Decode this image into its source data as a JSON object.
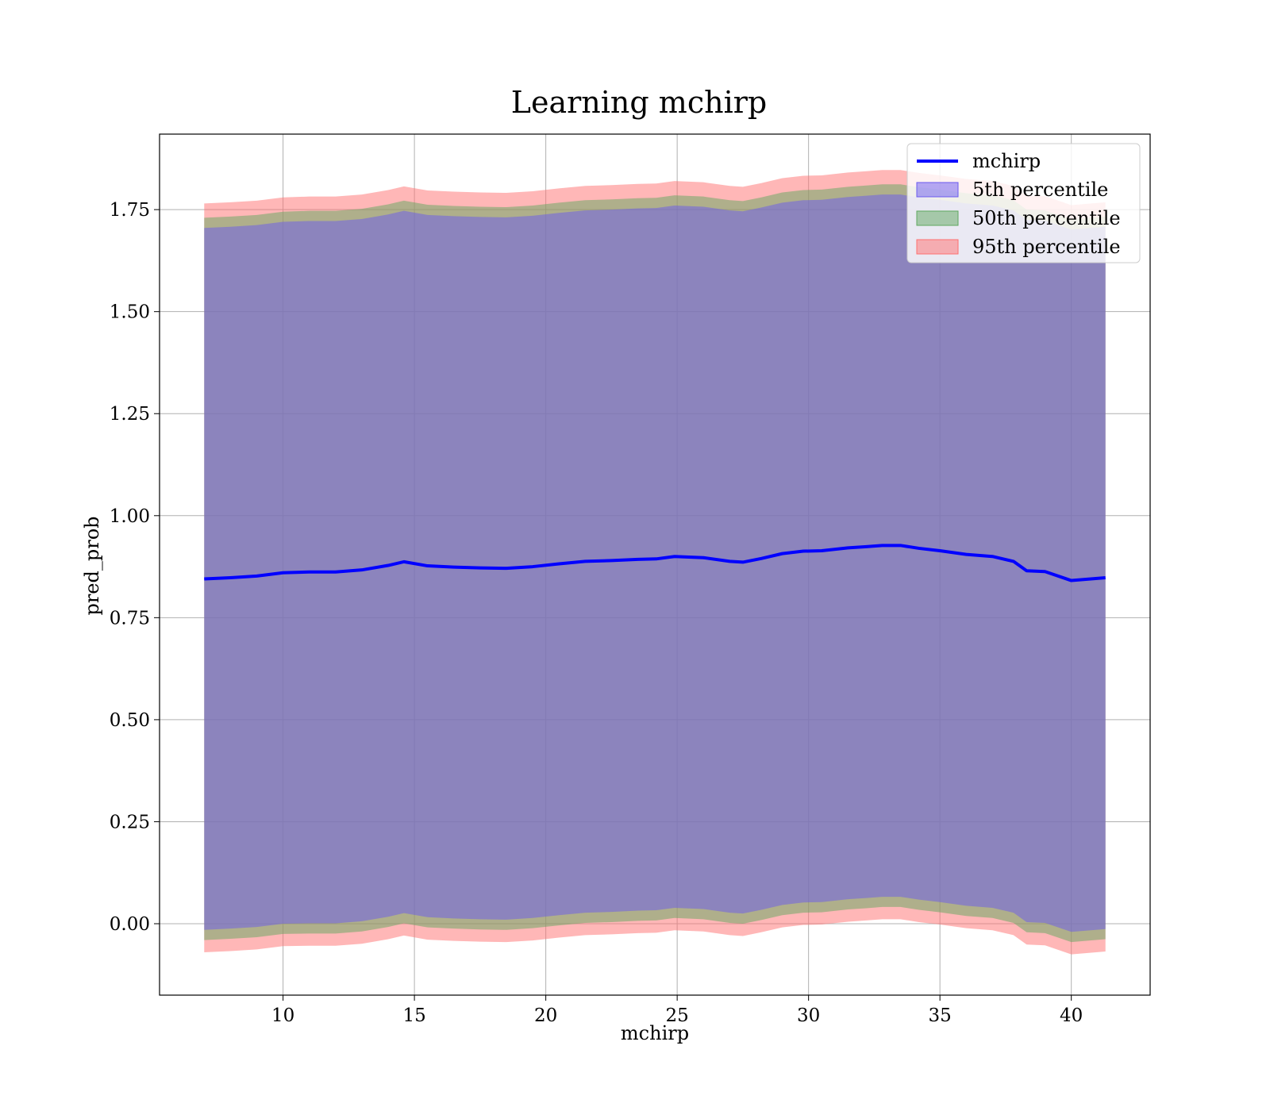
{
  "chart_data": {
    "type": "area",
    "title": "Learning mchirp",
    "xlabel": "mchirp",
    "ylabel": "pred_prob",
    "xlim": [
      5.3,
      43.0
    ],
    "ylim": [
      -0.175,
      1.935
    ],
    "xticks": [
      10,
      15,
      20,
      25,
      30,
      35,
      40
    ],
    "xtick_labels": [
      "10",
      "15",
      "20",
      "25",
      "30",
      "35",
      "40"
    ],
    "yticks": [
      0.0,
      0.25,
      0.5,
      0.75,
      1.0,
      1.25,
      1.5,
      1.75
    ],
    "ytick_labels": [
      "0.00",
      "0.25",
      "0.50",
      "0.75",
      "1.00",
      "1.25",
      "1.50",
      "1.75"
    ],
    "grid": true,
    "legend_position": "top-right",
    "x": [
      7.0,
      8.0,
      9.0,
      10.0,
      11.0,
      12.0,
      13.0,
      14.0,
      14.6,
      15.5,
      16.5,
      17.5,
      18.5,
      19.5,
      20.5,
      21.5,
      22.5,
      23.5,
      24.2,
      24.9,
      26.0,
      27.0,
      27.5,
      28.2,
      29.0,
      29.8,
      30.5,
      31.5,
      32.2,
      32.8,
      33.5,
      34.2,
      35.0,
      36.0,
      37.0,
      37.8,
      38.3,
      39.0,
      40.0,
      41.3
    ],
    "series": [
      {
        "name": "mchirp",
        "kind": "line",
        "color": "#0000ff",
        "values": [
          0.845,
          0.848,
          0.852,
          0.86,
          0.862,
          0.862,
          0.867,
          0.878,
          0.887,
          0.877,
          0.874,
          0.872,
          0.871,
          0.875,
          0.882,
          0.888,
          0.89,
          0.893,
          0.894,
          0.9,
          0.897,
          0.888,
          0.886,
          0.895,
          0.907,
          0.913,
          0.914,
          0.921,
          0.924,
          0.927,
          0.927,
          0.92,
          0.914,
          0.905,
          0.9,
          0.888,
          0.865,
          0.863,
          0.841,
          0.848
        ]
      },
      {
        "name": "5th percentile",
        "kind": "band",
        "color": "#6a5af0",
        "alpha": 0.5,
        "lower": [
          -0.015,
          -0.012,
          -0.008,
          0.0,
          0.001,
          0.001,
          0.006,
          0.017,
          0.026,
          0.016,
          0.013,
          0.011,
          0.01,
          0.014,
          0.021,
          0.027,
          0.029,
          0.032,
          0.033,
          0.039,
          0.036,
          0.027,
          0.025,
          0.034,
          0.046,
          0.052,
          0.053,
          0.06,
          0.063,
          0.066,
          0.066,
          0.059,
          0.053,
          0.044,
          0.039,
          0.027,
          0.004,
          0.002,
          -0.02,
          -0.013
        ],
        "upper": [
          1.705,
          1.708,
          1.712,
          1.72,
          1.722,
          1.722,
          1.727,
          1.738,
          1.747,
          1.737,
          1.734,
          1.732,
          1.731,
          1.735,
          1.742,
          1.748,
          1.75,
          1.753,
          1.754,
          1.76,
          1.757,
          1.748,
          1.746,
          1.755,
          1.767,
          1.773,
          1.774,
          1.781,
          1.784,
          1.787,
          1.787,
          1.78,
          1.774,
          1.765,
          1.76,
          1.748,
          1.725,
          1.723,
          1.701,
          1.708
        ]
      },
      {
        "name": "50th percentile",
        "kind": "band",
        "color": "#5fa85f",
        "alpha": 0.5,
        "lower": [
          -0.04,
          -0.037,
          -0.033,
          -0.025,
          -0.024,
          -0.024,
          -0.019,
          -0.008,
          0.001,
          -0.009,
          -0.012,
          -0.014,
          -0.015,
          -0.011,
          -0.004,
          0.002,
          0.004,
          0.007,
          0.008,
          0.014,
          0.011,
          0.002,
          0.0,
          0.009,
          0.021,
          0.027,
          0.028,
          0.035,
          0.038,
          0.041,
          0.041,
          0.034,
          0.028,
          0.019,
          0.014,
          0.002,
          -0.021,
          -0.023,
          -0.045,
          -0.038
        ],
        "upper": [
          1.73,
          1.733,
          1.737,
          1.745,
          1.747,
          1.747,
          1.752,
          1.763,
          1.772,
          1.762,
          1.759,
          1.757,
          1.756,
          1.76,
          1.767,
          1.773,
          1.775,
          1.778,
          1.779,
          1.785,
          1.782,
          1.773,
          1.771,
          1.78,
          1.792,
          1.798,
          1.799,
          1.806,
          1.809,
          1.812,
          1.812,
          1.805,
          1.799,
          1.79,
          1.785,
          1.773,
          1.75,
          1.748,
          1.726,
          1.733
        ]
      },
      {
        "name": "95th percentile",
        "kind": "band",
        "color": "#ff6f6f",
        "alpha": 0.5,
        "lower": [
          -0.07,
          -0.067,
          -0.063,
          -0.055,
          -0.054,
          -0.054,
          -0.049,
          -0.038,
          -0.029,
          -0.039,
          -0.042,
          -0.044,
          -0.045,
          -0.041,
          -0.034,
          -0.028,
          -0.026,
          -0.023,
          -0.022,
          -0.016,
          -0.019,
          -0.028,
          -0.03,
          -0.021,
          -0.009,
          -0.003,
          -0.002,
          0.005,
          0.008,
          0.011,
          0.011,
          0.004,
          -0.002,
          -0.011,
          -0.016,
          -0.028,
          -0.051,
          -0.053,
          -0.075,
          -0.068
        ],
        "upper": [
          1.765,
          1.768,
          1.772,
          1.78,
          1.782,
          1.782,
          1.787,
          1.798,
          1.807,
          1.797,
          1.794,
          1.792,
          1.791,
          1.795,
          1.802,
          1.808,
          1.81,
          1.813,
          1.814,
          1.82,
          1.817,
          1.808,
          1.806,
          1.815,
          1.827,
          1.833,
          1.834,
          1.841,
          1.844,
          1.847,
          1.847,
          1.84,
          1.834,
          1.825,
          1.82,
          1.808,
          1.785,
          1.783,
          1.761,
          1.768
        ]
      }
    ]
  }
}
